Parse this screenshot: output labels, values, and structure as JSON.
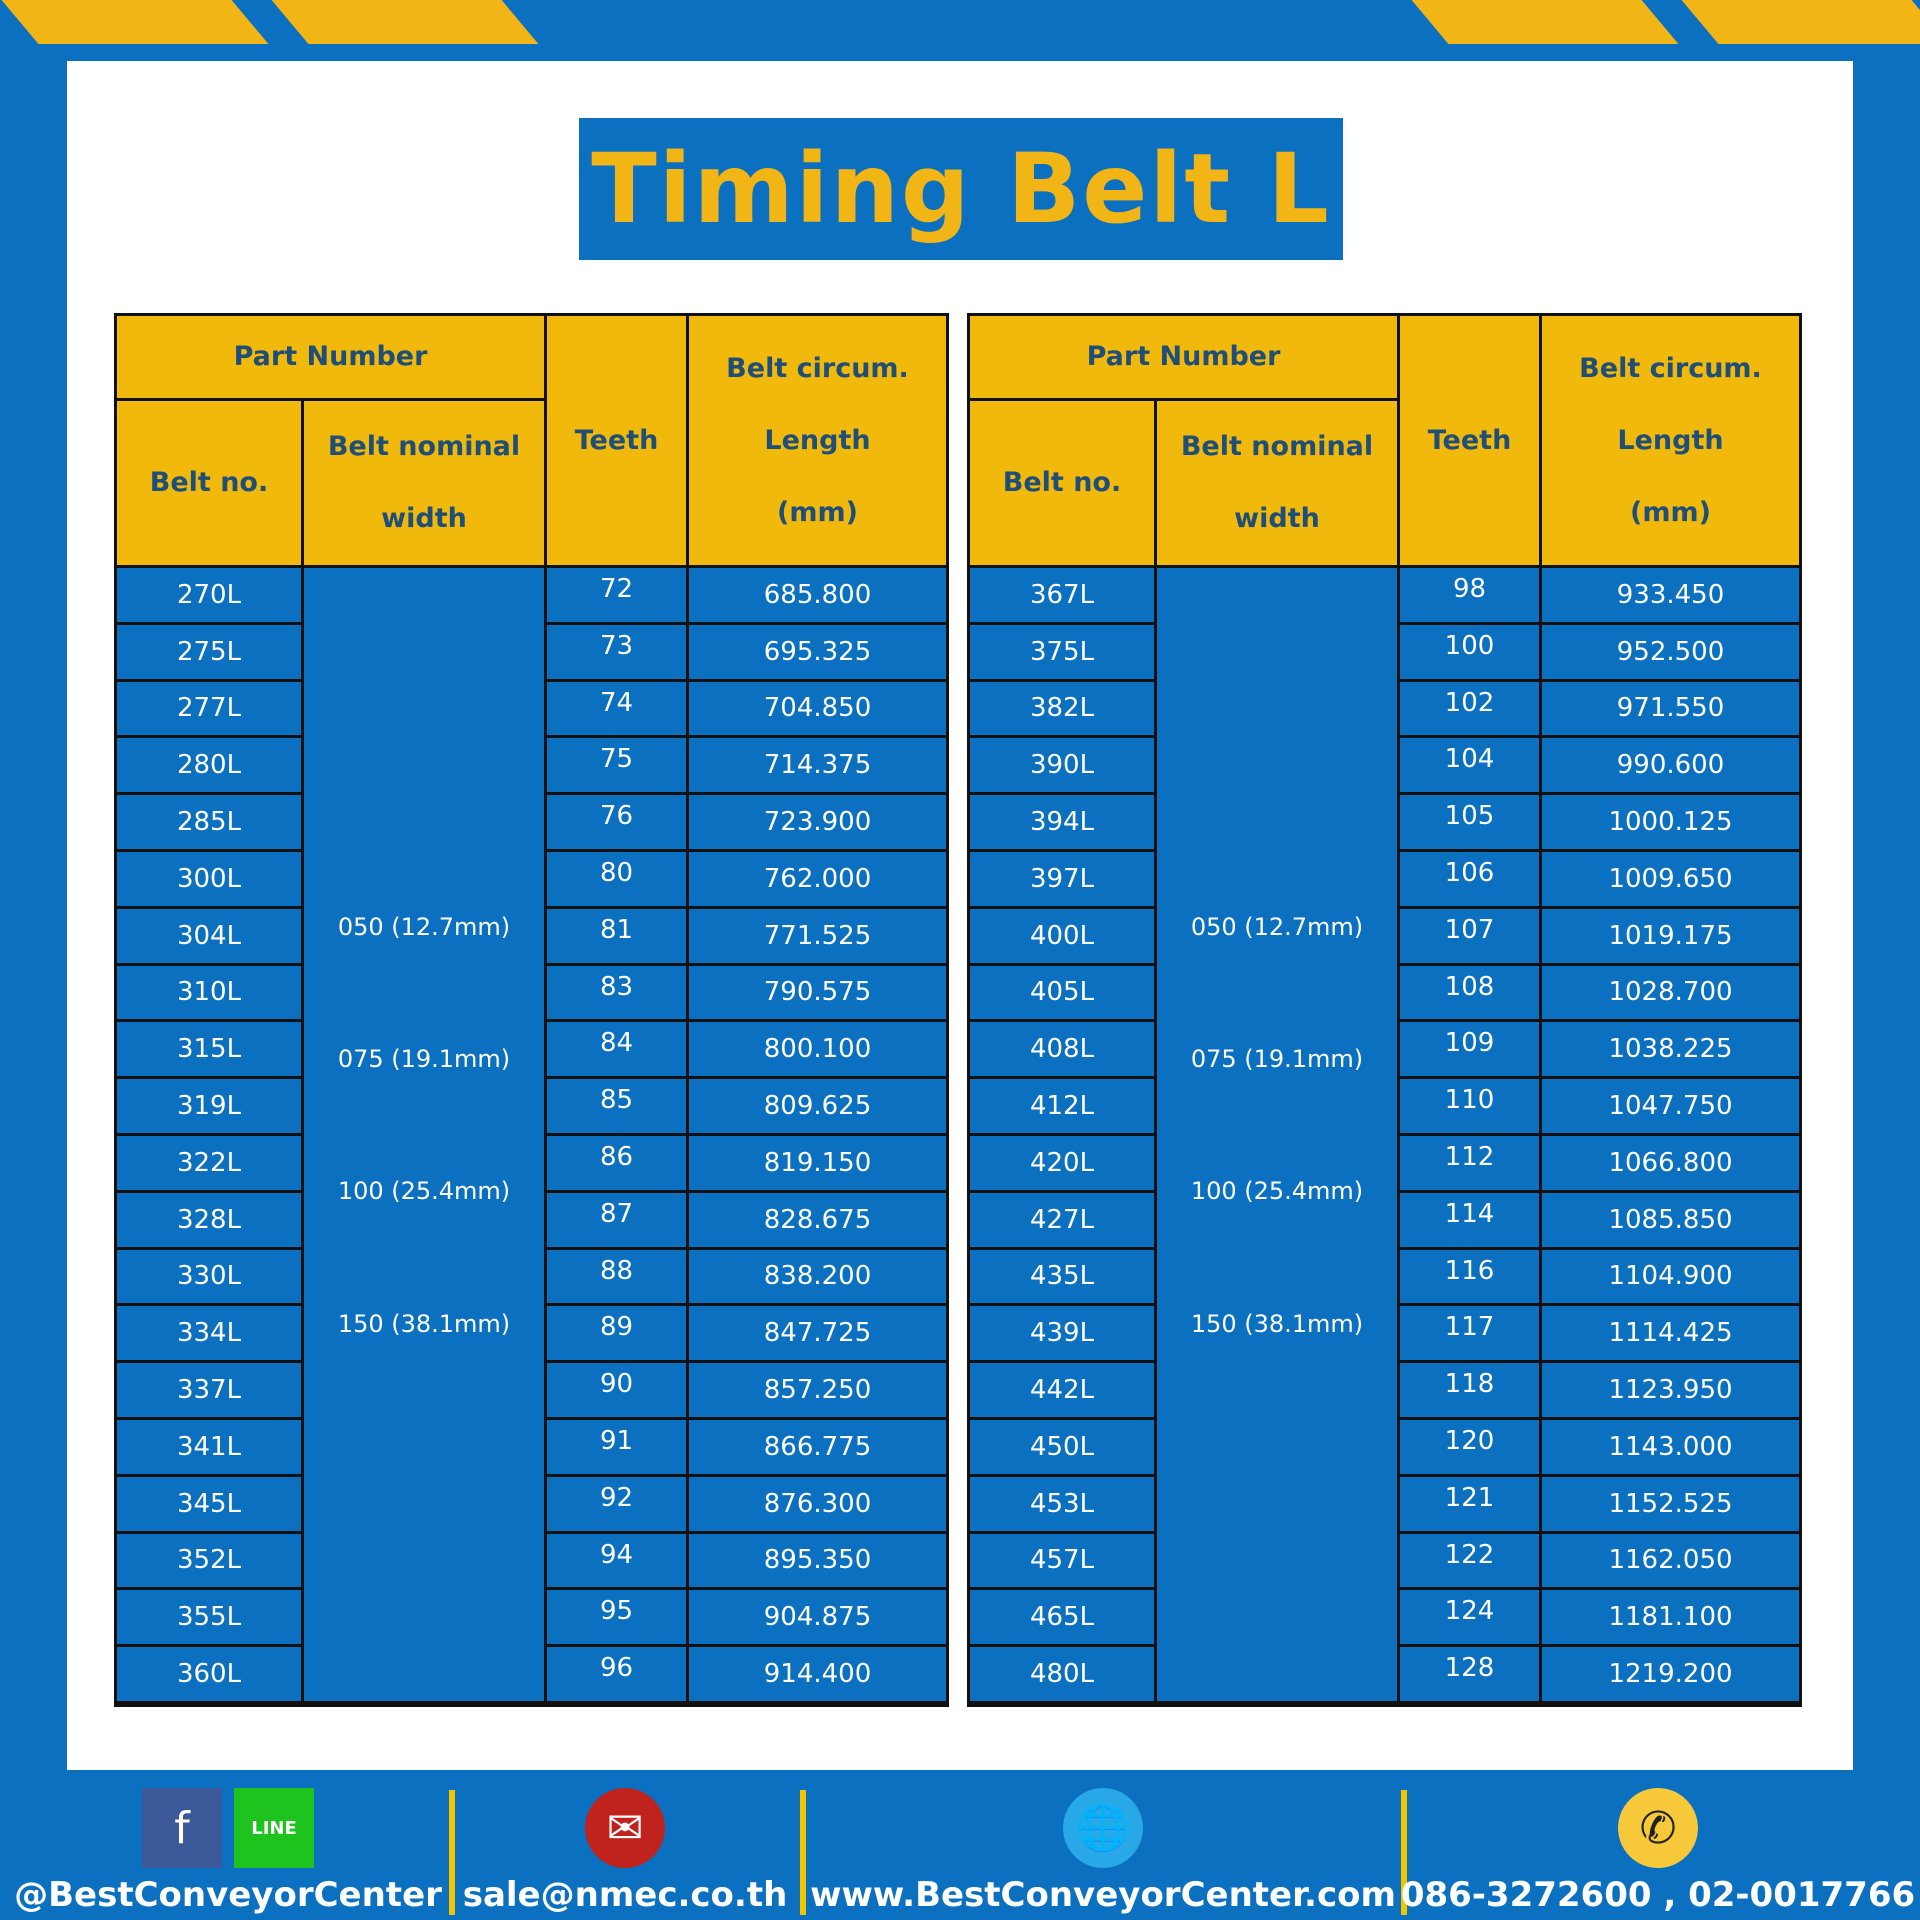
{
  "title": "Timing Belt L",
  "headers": {
    "part_number": "Part Number",
    "belt_no": "Belt no.",
    "width_1": "Belt nominal",
    "width_2": "width",
    "teeth": "Teeth",
    "len_1": "Belt circum.",
    "len_2": "Length",
    "len_3": "(mm)"
  },
  "widths": [
    "050 (12.7mm)",
    "075 (19.1mm)",
    "100 (25.4mm)",
    "150 (38.1mm)"
  ],
  "tables": [
    {
      "rows": [
        [
          "270L",
          "72",
          "685.800"
        ],
        [
          "275L",
          "73",
          "695.325"
        ],
        [
          "277L",
          "74",
          "704.850"
        ],
        [
          "280L",
          "75",
          "714.375"
        ],
        [
          "285L",
          "76",
          "723.900"
        ],
        [
          "300L",
          "80",
          "762.000"
        ],
        [
          "304L",
          "81",
          "771.525"
        ],
        [
          "310L",
          "83",
          "790.575"
        ],
        [
          "315L",
          "84",
          "800.100"
        ],
        [
          "319L",
          "85",
          "809.625"
        ],
        [
          "322L",
          "86",
          "819.150"
        ],
        [
          "328L",
          "87",
          "828.675"
        ],
        [
          "330L",
          "88",
          "838.200"
        ],
        [
          "334L",
          "89",
          "847.725"
        ],
        [
          "337L",
          "90",
          "857.250"
        ],
        [
          "341L",
          "91",
          "866.775"
        ],
        [
          "345L",
          "92",
          "876.300"
        ],
        [
          "352L",
          "94",
          "895.350"
        ],
        [
          "355L",
          "95",
          "904.875"
        ],
        [
          "360L",
          "96",
          "914.400"
        ]
      ]
    },
    {
      "rows": [
        [
          "367L",
          "98",
          "933.450"
        ],
        [
          "375L",
          "100",
          "952.500"
        ],
        [
          "382L",
          "102",
          "971.550"
        ],
        [
          "390L",
          "104",
          "990.600"
        ],
        [
          "394L",
          "105",
          "1000.125"
        ],
        [
          "397L",
          "106",
          "1009.650"
        ],
        [
          "400L",
          "107",
          "1019.175"
        ],
        [
          "405L",
          "108",
          "1028.700"
        ],
        [
          "408L",
          "109",
          "1038.225"
        ],
        [
          "412L",
          "110",
          "1047.750"
        ],
        [
          "420L",
          "112",
          "1066.800"
        ],
        [
          "427L",
          "114",
          "1085.850"
        ],
        [
          "435L",
          "116",
          "1104.900"
        ],
        [
          "439L",
          "117",
          "1114.425"
        ],
        [
          "442L",
          "118",
          "1123.950"
        ],
        [
          "450L",
          "120",
          "1143.000"
        ],
        [
          "453L",
          "121",
          "1152.525"
        ],
        [
          "457L",
          "122",
          "1162.050"
        ],
        [
          "465L",
          "124",
          "1181.100"
        ],
        [
          "480L",
          "128",
          "1219.200"
        ]
      ]
    }
  ],
  "footer": {
    "social": "@BestConveyorCenter",
    "email": "sale@nmec.co.th",
    "website": "www.BestConveyorCenter.com",
    "phone": "086-3272600 , 02-0017766",
    "icons": [
      "facebook-icon",
      "line-icon",
      "email-icon",
      "globe-icon",
      "phone-icon"
    ]
  },
  "colors": {
    "blue": "#0b70c0",
    "yellow": "#f0b90b",
    "header_text": "#1f4e79"
  }
}
